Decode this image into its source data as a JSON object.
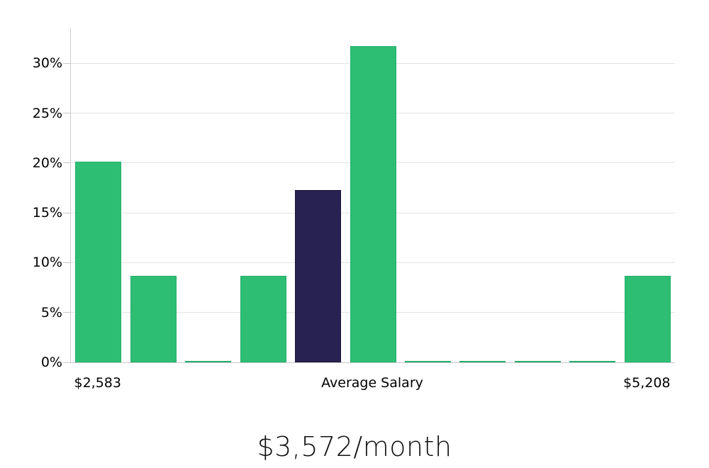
{
  "chart_data": {
    "type": "bar",
    "title": "$3,572/month",
    "categories": [
      "bin-1",
      "bin-2",
      "bin-3",
      "bin-4",
      "bin-5 (average)",
      "bin-6",
      "bin-7",
      "bin-8",
      "bin-9",
      "bin-10",
      "bin-11"
    ],
    "values": [
      20.1,
      8.7,
      0.15,
      8.7,
      17.3,
      31.7,
      0.15,
      0.15,
      0.15,
      0.15,
      8.7
    ],
    "highlight_index": 4,
    "xlabel": "",
    "ylabel": "",
    "y_ticks": [
      0,
      5,
      10,
      15,
      20,
      25,
      30
    ],
    "y_tick_suffix": "%",
    "ylim": [
      0,
      33.5
    ],
    "x_tick_labels": [
      {
        "bar": 0,
        "label": "$2,583"
      },
      {
        "bar": 5,
        "label": "Average Salary"
      },
      {
        "bar": 10,
        "label": "$5,208"
      }
    ],
    "grid": true,
    "legend": "none",
    "colors": {
      "bar": "#2dbe74",
      "bar_border": "#25ae69",
      "highlight_bar": "#282250",
      "highlight_bar_border": "#1a163c",
      "gridline": "#e3e3e3",
      "axis": "#c9c9c9",
      "tick_text": "#000000",
      "title_text": "#111111",
      "background": "#ffffff"
    }
  }
}
